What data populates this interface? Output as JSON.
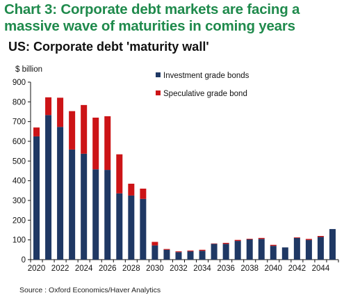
{
  "chart_data": {
    "type": "bar",
    "stacked": true,
    "title": "Chart 3: Corporate debt markets are facing a massive wave of maturities in coming years",
    "subtitle": "US: Corporate debt 'maturity wall'",
    "ylabel": "$ billion",
    "xlabel": "",
    "ylim": [
      0,
      900
    ],
    "yticks": [
      0,
      100,
      200,
      300,
      400,
      500,
      600,
      700,
      800,
      900
    ],
    "grid": false,
    "legend_position": "top-right",
    "categories": [
      "2020",
      "2021",
      "2022",
      "2023",
      "2024",
      "2025",
      "2026",
      "2027",
      "2028",
      "2029",
      "2030",
      "2031",
      "2032",
      "2033",
      "2034",
      "2035",
      "2036",
      "2037",
      "2038",
      "2039",
      "2040",
      "2041",
      "2042",
      "2043",
      "2044",
      "2045"
    ],
    "x_tick_labels": [
      "2020",
      "2022",
      "2024",
      "2026",
      "2028",
      "2030",
      "2032",
      "2034",
      "2036",
      "2038",
      "2040",
      "2042",
      "2044"
    ],
    "series": [
      {
        "name": "Investment grade bonds",
        "color": "#1f3864",
        "values": [
          625,
          733,
          673,
          558,
          537,
          458,
          455,
          336,
          325,
          308,
          72,
          50,
          38,
          42,
          45,
          80,
          80,
          95,
          103,
          105,
          70,
          62,
          110,
          100,
          115,
          155
        ]
      },
      {
        "name": "Speculative grade bond",
        "color": "#cc1417",
        "values": [
          45,
          90,
          148,
          195,
          247,
          262,
          272,
          198,
          60,
          52,
          18,
          4,
          4,
          4,
          5,
          2,
          5,
          5,
          3,
          5,
          5,
          0,
          3,
          5,
          5,
          0
        ]
      }
    ],
    "source": "Source : Oxford Economics/Haver Analytics"
  }
}
